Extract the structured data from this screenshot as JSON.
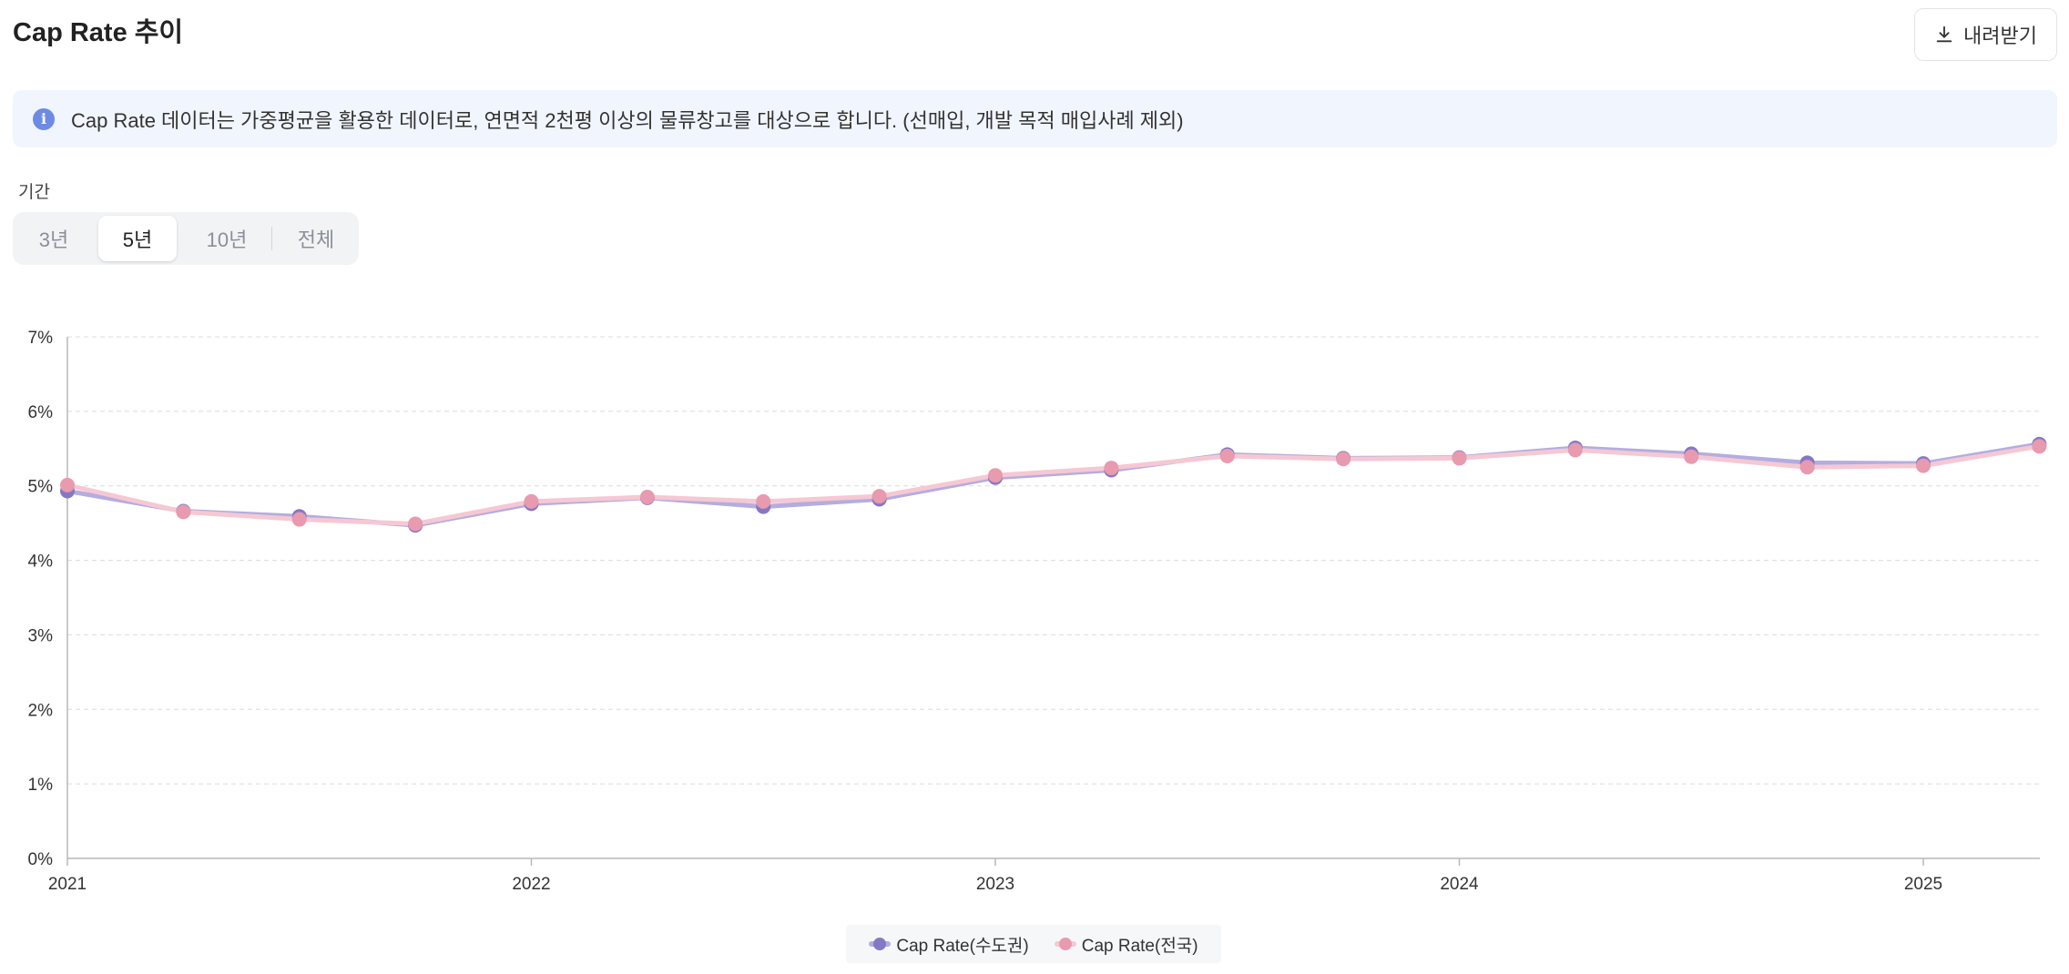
{
  "header": {
    "title": "Cap Rate 추이",
    "download_label": "내려받기"
  },
  "notice": {
    "text": "Cap Rate 데이터는 가중평균을 활용한 데이터로, 연면적 2천평 이상의 물류창고를 대상으로 합니다. (선매입, 개발 목적 매입사례 제외)"
  },
  "period": {
    "label": "기간",
    "options": [
      "3년",
      "5년",
      "10년",
      "전체"
    ],
    "selected": "5년"
  },
  "colors": {
    "capital": "#8478c6",
    "capital_light": "#b3ade0",
    "national": "#e89aae",
    "national_light": "#f6c8d3",
    "grid": "#dcdcdc",
    "axis": "#b8b8b8"
  },
  "chart_data": {
    "type": "line",
    "x_tick_labels": [
      "2021",
      "2022",
      "2023",
      "2024",
      "2025"
    ],
    "x": [
      "2021 Q1",
      "2021 Q2",
      "2021 Q3",
      "2021 Q4",
      "2022 Q1",
      "2022 Q2",
      "2022 Q3",
      "2022 Q4",
      "2023 Q1",
      "2023 Q2",
      "2023 Q3",
      "2023 Q4",
      "2024 Q1",
      "2024 Q2",
      "2024 Q3",
      "2024 Q4",
      "2025 Q1",
      "2025 Q2"
    ],
    "y_tick_labels": [
      "0%",
      "1%",
      "2%",
      "3%",
      "4%",
      "5%",
      "6%",
      "7%"
    ],
    "ylim": [
      0,
      7
    ],
    "grid": true,
    "legend_position": "bottom",
    "series": [
      {
        "name": "Cap Rate(수도권)",
        "values": [
          4.93,
          4.66,
          4.59,
          4.47,
          4.76,
          4.84,
          4.72,
          4.82,
          5.11,
          5.21,
          5.42,
          5.37,
          5.38,
          5.51,
          5.43,
          5.31,
          5.3,
          5.56
        ]
      },
      {
        "name": "Cap Rate(전국)",
        "values": [
          5.01,
          4.65,
          4.55,
          4.49,
          4.79,
          4.85,
          4.79,
          4.86,
          5.14,
          5.24,
          5.4,
          5.36,
          5.37,
          5.48,
          5.39,
          5.25,
          5.27,
          5.53
        ]
      }
    ]
  }
}
